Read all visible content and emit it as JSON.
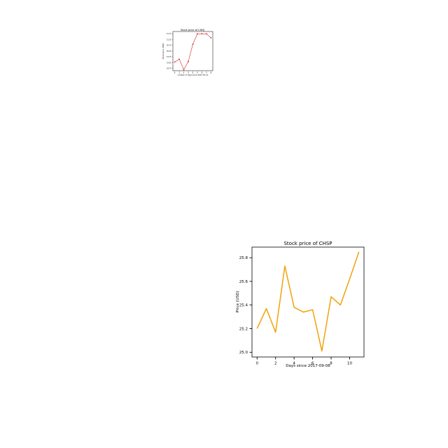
{
  "chart_data": [
    {
      "id": "small",
      "type": "line",
      "title": "Stock price of CHNJ",
      "xlabel": "number of days since 2017-07-11",
      "ylabel": "Stock price (USD)",
      "x": [
        0,
        1,
        2,
        3,
        4,
        5,
        6,
        7,
        8
      ],
      "series": [
        {
          "values": [
            19.3,
            19.55,
            18.65,
            19.35,
            20.85,
            21.75,
            21.75,
            21.75,
            21.4
          ],
          "color": "#d62728",
          "marker": "o"
        }
      ],
      "xticks": [
        0,
        1,
        2,
        3,
        4,
        5,
        6,
        7,
        8
      ],
      "yticks": [
        18.75,
        19.25,
        19.75,
        20.25,
        20.75,
        21.25,
        21.75
      ],
      "ytick_labels": [
        "18.75",
        "19.25",
        "19.75",
        "20.25",
        "20.75",
        "21.25",
        "21.75"
      ],
      "xlim": [
        -0.4,
        8.4
      ],
      "ylim": [
        18.55,
        21.95
      ],
      "grid": false
    },
    {
      "id": "large",
      "type": "line",
      "title": "Stock price of CHSP",
      "xlabel": "Days since 2017-09-08",
      "ylabel": "Price (USD)",
      "x": [
        0,
        1,
        2,
        3,
        4,
        5,
        6,
        7,
        8,
        9,
        10,
        11
      ],
      "series": [
        {
          "values": [
            25.2,
            25.37,
            25.17,
            25.73,
            25.38,
            25.34,
            25.36,
            25.01,
            25.47,
            25.4,
            25.62,
            25.85
          ],
          "color": "#f0a30a",
          "marker": ""
        }
      ],
      "xticks": [
        0,
        2,
        4,
        6,
        8,
        10
      ],
      "yticks": [
        25.0,
        25.2,
        25.4,
        25.6,
        25.8
      ],
      "ytick_labels": [
        "25.0",
        "25.2",
        "25.4",
        "25.6",
        "25.8"
      ],
      "xlim": [
        -0.55,
        11.55
      ],
      "ylim": [
        24.96,
        25.89
      ],
      "grid": false
    }
  ]
}
